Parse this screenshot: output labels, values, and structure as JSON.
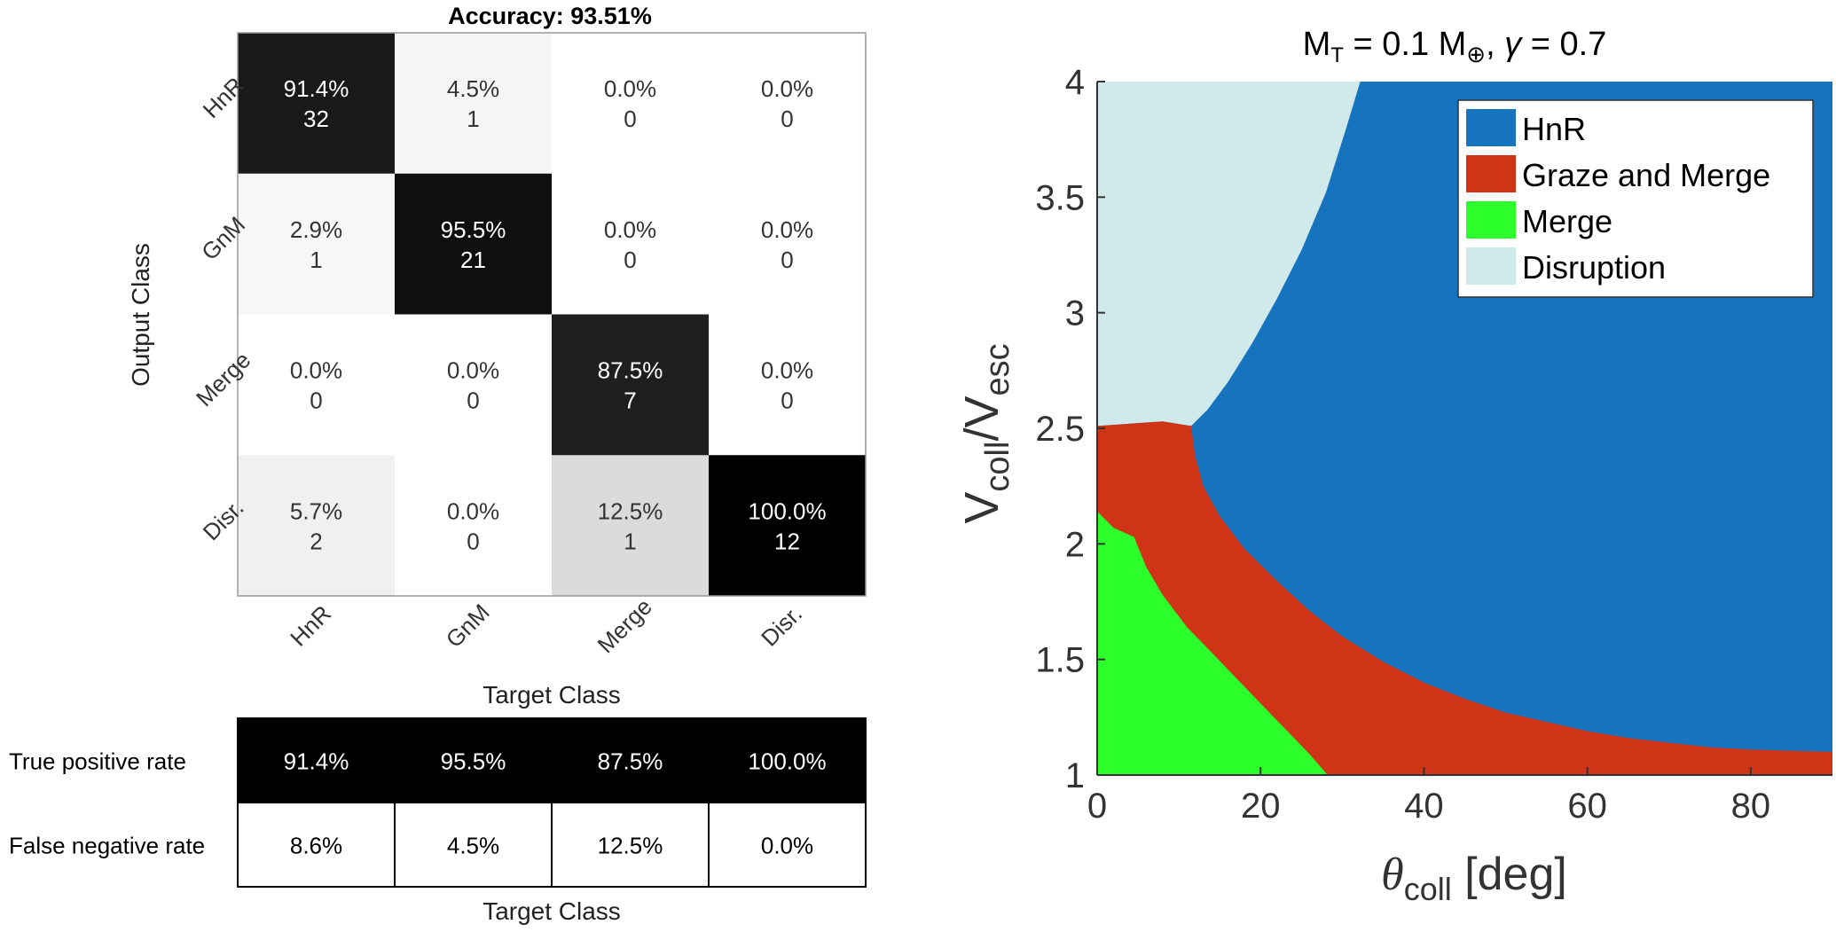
{
  "chart_data": [
    {
      "type": "heatmap",
      "title_label": "Accuracy:",
      "accuracy": "93.51%",
      "ylabel": "Output Class",
      "xlabel": "Target Class",
      "classes": [
        "HnR",
        "GnM",
        "Merge",
        "Disr."
      ],
      "cells": [
        [
          {
            "pct": "91.4%",
            "count": "32",
            "shade": 0.9
          },
          {
            "pct": "4.5%",
            "count": "1",
            "shade": 0.04
          },
          {
            "pct": "0.0%",
            "count": "0",
            "shade": 0
          },
          {
            "pct": "0.0%",
            "count": "0",
            "shade": 0
          }
        ],
        [
          {
            "pct": "2.9%",
            "count": "1",
            "shade": 0.03
          },
          {
            "pct": "95.5%",
            "count": "21",
            "shade": 0.94
          },
          {
            "pct": "0.0%",
            "count": "0",
            "shade": 0
          },
          {
            "pct": "0.0%",
            "count": "0",
            "shade": 0
          }
        ],
        [
          {
            "pct": "0.0%",
            "count": "0",
            "shade": 0
          },
          {
            "pct": "0.0%",
            "count": "0",
            "shade": 0
          },
          {
            "pct": "87.5%",
            "count": "7",
            "shade": 0.88
          },
          {
            "pct": "0.0%",
            "count": "0",
            "shade": 0
          }
        ],
        [
          {
            "pct": "5.7%",
            "count": "2",
            "shade": 0.06
          },
          {
            "pct": "0.0%",
            "count": "0",
            "shade": 0
          },
          {
            "pct": "12.5%",
            "count": "1",
            "shade": 0.14
          },
          {
            "pct": "100.0%",
            "count": "12",
            "shade": 1.0
          }
        ]
      ]
    },
    {
      "type": "table",
      "xlabel": "Target Class",
      "rows": [
        {
          "label": "True positive rate",
          "values": [
            "91.4%",
            "95.5%",
            "87.5%",
            "100.0%"
          ],
          "dark": true
        },
        {
          "label": "False negative rate",
          "values": [
            "8.6%",
            "4.5%",
            "12.5%",
            "0.0%"
          ],
          "dark": false
        }
      ]
    },
    {
      "type": "area",
      "title": {
        "m": "M",
        "t": "T",
        "eq": " = 0.1 M",
        "earth": "⊕",
        "sep": ", ",
        "gamma": "γ",
        "rest": " = 0.7"
      },
      "xlabel": {
        "theta": "θ",
        "sub": "coll",
        "unit": " [deg]"
      },
      "ylabel": {
        "v1": "V",
        "s1": "coll",
        "slash": "/V",
        "s2": "esc"
      },
      "xlim": [
        0,
        90
      ],
      "ylim": [
        1,
        4
      ],
      "xticks": [
        "0",
        "20",
        "40",
        "60",
        "80"
      ],
      "yticks": [
        "1",
        "1.5",
        "2",
        "2.5",
        "3",
        "3.5",
        "4"
      ],
      "legend_position": "top-right",
      "series": [
        {
          "name": "HnR",
          "color": "#1673BE"
        },
        {
          "name": "Graze and Merge",
          "color": "#CF3417"
        },
        {
          "name": "Merge",
          "color": "#2DFF2D"
        },
        {
          "name": "Disruption",
          "color": "#D0E9EA"
        }
      ],
      "boundaries": {
        "disruption_hnr": [
          [
            32.2,
            4.0
          ],
          [
            30.5,
            3.8
          ],
          [
            28,
            3.52
          ],
          [
            25,
            3.27
          ],
          [
            22,
            3.06
          ],
          [
            19,
            2.87
          ],
          [
            16,
            2.7
          ],
          [
            13.5,
            2.58
          ],
          [
            11.5,
            2.51
          ]
        ],
        "disruption_gnm": [
          [
            0,
            2.51
          ],
          [
            4,
            2.52
          ],
          [
            8,
            2.53
          ],
          [
            11.5,
            2.51
          ]
        ],
        "gnm_hnr": [
          [
            11.5,
            2.51
          ],
          [
            12,
            2.38
          ],
          [
            13,
            2.25
          ],
          [
            15,
            2.12
          ],
          [
            18,
            1.98
          ],
          [
            22,
            1.84
          ],
          [
            26,
            1.71
          ],
          [
            30,
            1.6
          ],
          [
            35,
            1.49
          ],
          [
            40,
            1.4
          ],
          [
            45,
            1.33
          ],
          [
            50,
            1.27
          ],
          [
            55,
            1.23
          ],
          [
            60,
            1.19
          ],
          [
            65,
            1.16
          ],
          [
            70,
            1.14
          ],
          [
            75,
            1.12
          ],
          [
            80,
            1.11
          ],
          [
            85,
            1.105
          ],
          [
            90,
            1.1
          ]
        ],
        "gnm_bottom_right": [
          [
            90,
            1.1
          ],
          [
            90,
            1.0
          ]
        ],
        "merge_gnm": [
          [
            0,
            2.14
          ],
          [
            2,
            2.07
          ],
          [
            4.5,
            2.03
          ],
          [
            6,
            1.9
          ],
          [
            8,
            1.78
          ],
          [
            11,
            1.64
          ],
          [
            14,
            1.53
          ],
          [
            17,
            1.42
          ],
          [
            20,
            1.31
          ],
          [
            23,
            1.2
          ],
          [
            26,
            1.09
          ],
          [
            28.2,
            1.0
          ]
        ]
      }
    }
  ]
}
